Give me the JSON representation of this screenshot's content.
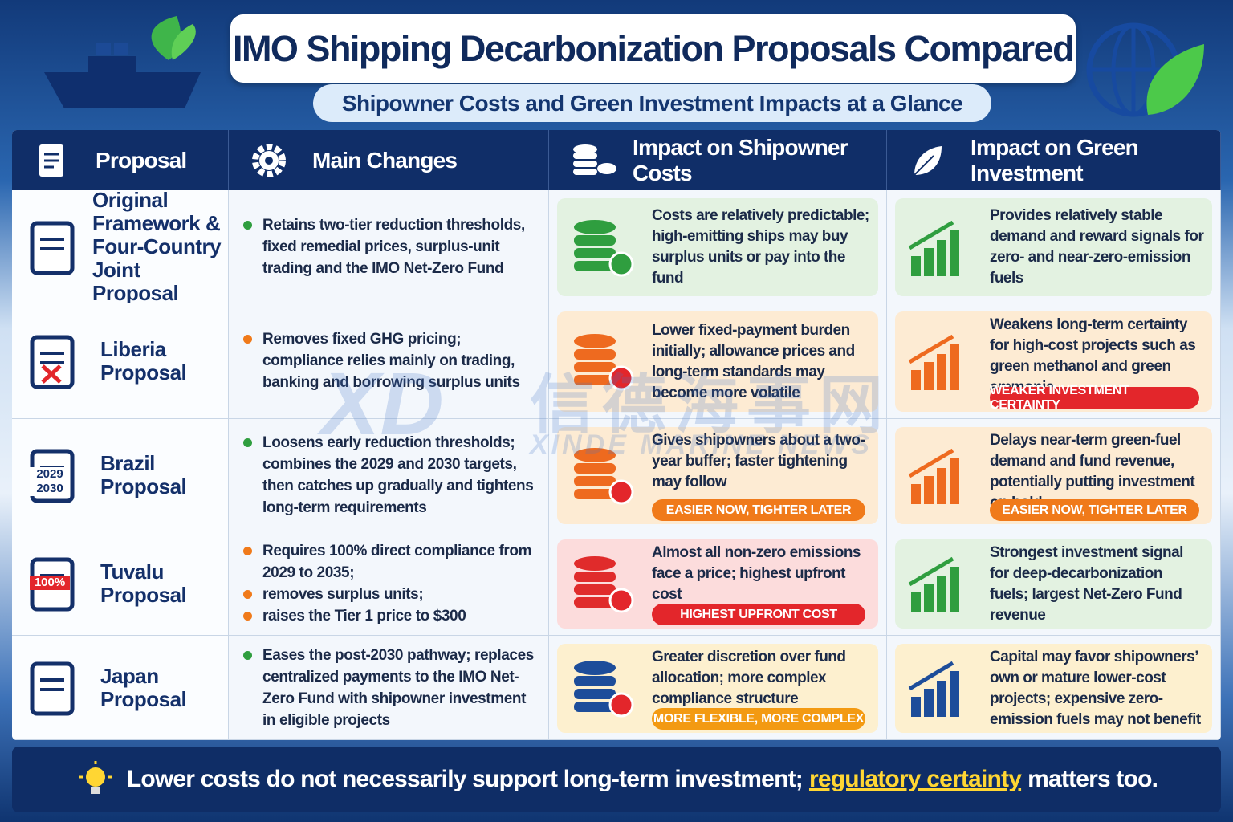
{
  "header": {
    "title": "IMO Shipping Decarbonization Proposals Compared",
    "subtitle": "Shipowner Costs and Green Investment Impacts at a Glance"
  },
  "table": {
    "columns": [
      "Proposal",
      "Main Changes",
      "Impact on Shipowner Costs",
      "Impact on Green Investment"
    ],
    "rows": [
      {
        "proposal": "Original Framework & Four-Country Joint Proposal",
        "changes": [
          "Retains two-tier reduction thresholds, fixed remedial prices, surplus-unit trading and the IMO Net-Zero Fund"
        ],
        "cost": {
          "text": "Costs are relatively predictable; high-emitting ships may buy surplus units or pay into the fund"
        },
        "green": {
          "text": "Provides relatively stable demand and reward signals for zero- and near-zero-emission fuels"
        }
      },
      {
        "proposal": "Liberia Proposal",
        "changes": [
          "Removes fixed GHG pricing; compliance relies mainly on trading, banking and borrowing surplus units"
        ],
        "cost": {
          "text": "Lower fixed-payment burden initially; allowance prices and long-term standards may become more volatile"
        },
        "green": {
          "text": "Weakens long-term certainty for high-cost projects such as green methanol and green ammonia",
          "badge": "WEAKER INVESTMENT CERTAINTY"
        }
      },
      {
        "proposal": "Brazil Proposal",
        "icon_text": [
          "2029",
          "2030"
        ],
        "changes": [
          "Loosens early reduction thresholds; combines the 2029 and 2030 targets, then catches up gradually and tightens long-term requirements"
        ],
        "cost": {
          "text": "Gives shipowners about a two-year buffer; faster tightening may follow",
          "badge": "EASIER NOW, TIGHTER LATER"
        },
        "green": {
          "text": "Delays near-term green-fuel demand and fund revenue, potentially putting investment on hold",
          "badge": "EASIER NOW, TIGHTER LATER"
        }
      },
      {
        "proposal": "Tuvalu Proposal",
        "icon_text": [
          "100%"
        ],
        "changes": [
          "Requires 100% direct compliance from 2029 to 2035;",
          "removes surplus units;",
          "raises the Tier 1 price to $300"
        ],
        "cost": {
          "text": "Almost all non-zero emissions face a price; highest upfront cost",
          "badge": "HIGHEST UPFRONT COST"
        },
        "green": {
          "text": "Strongest investment signal for deep-decarbonization fuels; largest Net-Zero Fund revenue"
        }
      },
      {
        "proposal": "Japan Proposal",
        "changes": [
          "Eases the post-2030 pathway; replaces centralized payments to the IMO Net-Zero Fund with shipowner investment in eligible projects"
        ],
        "cost": {
          "text": "Greater discretion over fund allocation; more complex compliance structure",
          "badge": "MORE FLEXIBLE, MORE COMPLEX"
        },
        "green": {
          "text": "Capital may favor shipowners’ own or mature lower-cost projects; expensive zero-emission fuels may not benefit"
        }
      }
    ]
  },
  "footer": {
    "text_before": "Lower costs do not necessarily support long-term investment;",
    "highlight": "regulatory certainty",
    "text_after": "matters too."
  },
  "watermark": {
    "logo": "XD",
    "cn": "信德海事网",
    "en": "XINDE MARINE NEWS"
  }
}
